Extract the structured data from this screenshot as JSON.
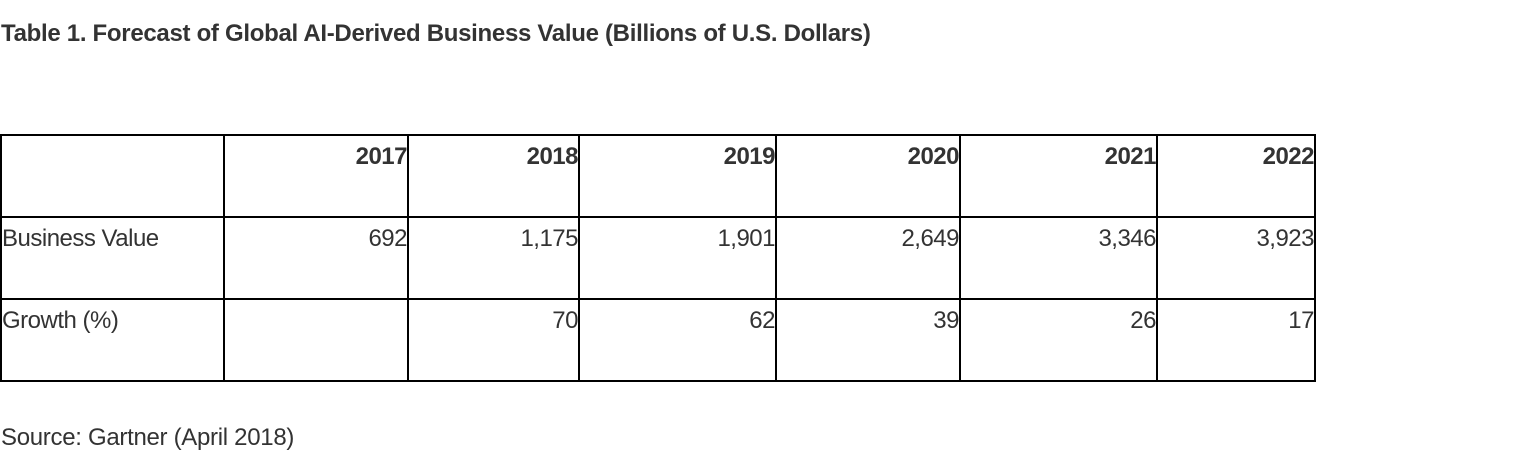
{
  "title": "Table 1. Forecast of Global AI-Derived Business Value (Billions of U.S. Dollars)",
  "table": {
    "header": [
      "",
      "2017",
      "2018",
      "2019",
      "2020",
      "2021",
      "2022"
    ],
    "rows": [
      {
        "label": "Business Value",
        "values": [
          "692",
          "1,175",
          "1,901",
          "2,649",
          "3,346",
          "3,923"
        ]
      },
      {
        "label": "Growth (%)",
        "values": [
          "",
          "70",
          "62",
          "39",
          "26",
          "17"
        ]
      }
    ]
  },
  "source": "Source: Gartner (April 2018)"
}
